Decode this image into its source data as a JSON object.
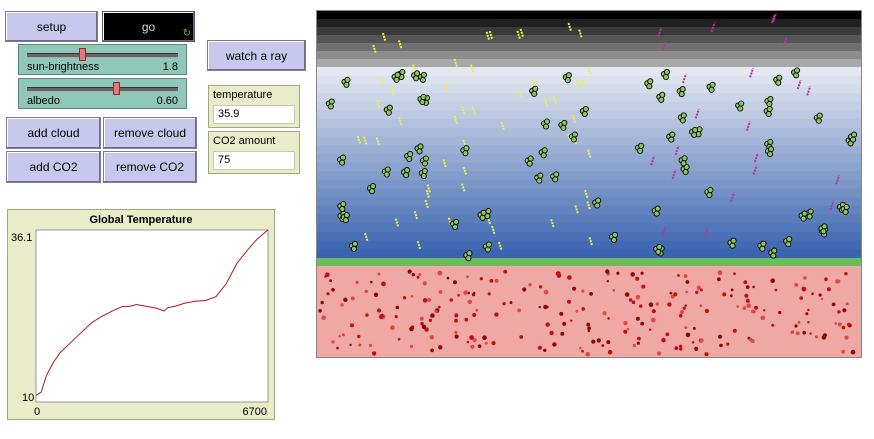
{
  "buttons": {
    "setup": "setup",
    "go": "go",
    "watch_ray": "watch a ray",
    "add_cloud": "add cloud",
    "remove_cloud": "remove cloud",
    "add_co2": "add CO2",
    "remove_co2": "remove CO2"
  },
  "sliders": {
    "sun_brightness": {
      "label": "sun-brightness",
      "value": "1.8",
      "fraction": 0.36
    },
    "albedo": {
      "label": "albedo",
      "value": "0.60",
      "fraction": 0.6
    }
  },
  "monitors": {
    "temperature": {
      "label": "temperature",
      "value": "35.9"
    },
    "co2": {
      "label": "CO2 amount",
      "value": "75"
    }
  },
  "plot": {
    "title": "Global Temperature",
    "y_max_label": "36.1",
    "y_min_label": "10",
    "x_min_label": "0",
    "x_max_label": "6700",
    "line_color": "#b01818"
  },
  "chart_data": {
    "type": "line",
    "title": "Global Temperature",
    "xlim": [
      0,
      6700
    ],
    "ylim": [
      10,
      36.1
    ],
    "x": [
      0,
      150,
      300,
      500,
      700,
      1000,
      1300,
      1600,
      1900,
      2200,
      2500,
      2700,
      2900,
      3200,
      3500,
      3700,
      3800,
      4000,
      4300,
      4600,
      4900,
      5200,
      5500,
      5800,
      6100,
      6400,
      6700
    ],
    "y": [
      11.0,
      11.5,
      14.0,
      16.0,
      17.5,
      19.0,
      20.5,
      22.0,
      23.0,
      23.8,
      24.5,
      24.5,
      24.8,
      24.5,
      24.2,
      23.8,
      24.3,
      24.5,
      25.0,
      25.3,
      25.4,
      26.0,
      28.0,
      31.0,
      33.0,
      34.8,
      36.1
    ]
  },
  "world": {
    "colors": {
      "space": "#000000",
      "sky_top": "#e4e8f0",
      "sky_bottom": "#3a64b0",
      "ground": "#6cbc5c",
      "earth": "#f0a8a4",
      "cloud": "#8cc860",
      "sunray": "#f0f040",
      "infrared": "#c0309c",
      "heat_dot": "#c01010"
    }
  }
}
